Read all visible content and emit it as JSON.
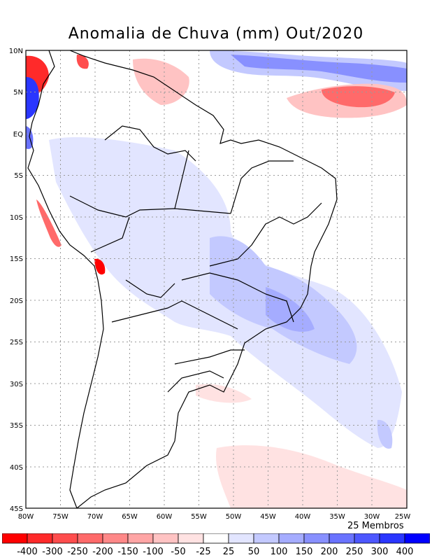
{
  "title": "Anomalia de Chuva (mm) Out/2020",
  "members_label": "25 Membros",
  "map": {
    "lon_range": [
      -80,
      -25
    ],
    "lat_range": [
      -45,
      10
    ],
    "lon_ticks": [
      "80W",
      "75W",
      "70W",
      "65W",
      "60W",
      "55W",
      "50W",
      "45W",
      "40W",
      "35W",
      "30W",
      "25W"
    ],
    "lat_ticks": [
      "10N",
      "5N",
      "EQ",
      "5S",
      "10S",
      "15S",
      "20S",
      "25S",
      "30S",
      "35S",
      "40S",
      "45S"
    ]
  },
  "colorbar": {
    "labels": [
      "-400",
      "-300",
      "-250",
      "-200",
      "-150",
      "-100",
      "-50",
      "-25",
      "25",
      "50",
      "100",
      "150",
      "200",
      "250",
      "300",
      "400"
    ],
    "colors": [
      "#ff0000",
      "#ff2a2a",
      "#ff4d4d",
      "#ff6a6a",
      "#ff8888",
      "#ffa5a5",
      "#ffc3c3",
      "#ffe2e2",
      "#ffffff",
      "#e2e5ff",
      "#c3c9ff",
      "#a5acff",
      "#8890ff",
      "#6a73ff",
      "#4d57ff",
      "#2a36ff",
      "#0000ff"
    ]
  }
}
